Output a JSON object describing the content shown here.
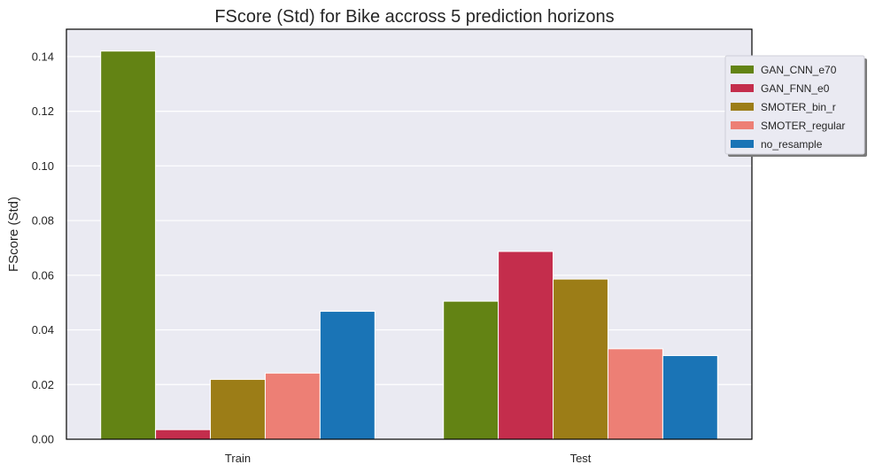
{
  "chart_data": {
    "type": "bar",
    "title": "FScore (Std) for Bike accross 5 prediction horizons",
    "xlabel": "",
    "ylabel": "FScore (Std)",
    "categories": [
      "Train",
      "Test"
    ],
    "ylim": [
      0,
      0.15
    ],
    "yticks": [
      0.0,
      0.02,
      0.04,
      0.06,
      0.08,
      0.1,
      0.12,
      0.14
    ],
    "grid": true,
    "legend_position": "top-right, outside",
    "series": [
      {
        "name": "GAN_CNN_e70",
        "color": "#638314",
        "values": [
          0.142,
          0.0505
        ]
      },
      {
        "name": "GAN_FNN_e0",
        "color": "#c42d4c",
        "values": [
          0.0035,
          0.0687
        ]
      },
      {
        "name": "SMOTER_bin_r",
        "color": "#9c7d17",
        "values": [
          0.0219,
          0.0586
        ]
      },
      {
        "name": "SMOTER_regular",
        "color": "#ed7f75",
        "values": [
          0.0242,
          0.0331
        ]
      },
      {
        "name": "no_resample",
        "color": "#1a74b6",
        "values": [
          0.0468,
          0.0306
        ]
      }
    ]
  }
}
